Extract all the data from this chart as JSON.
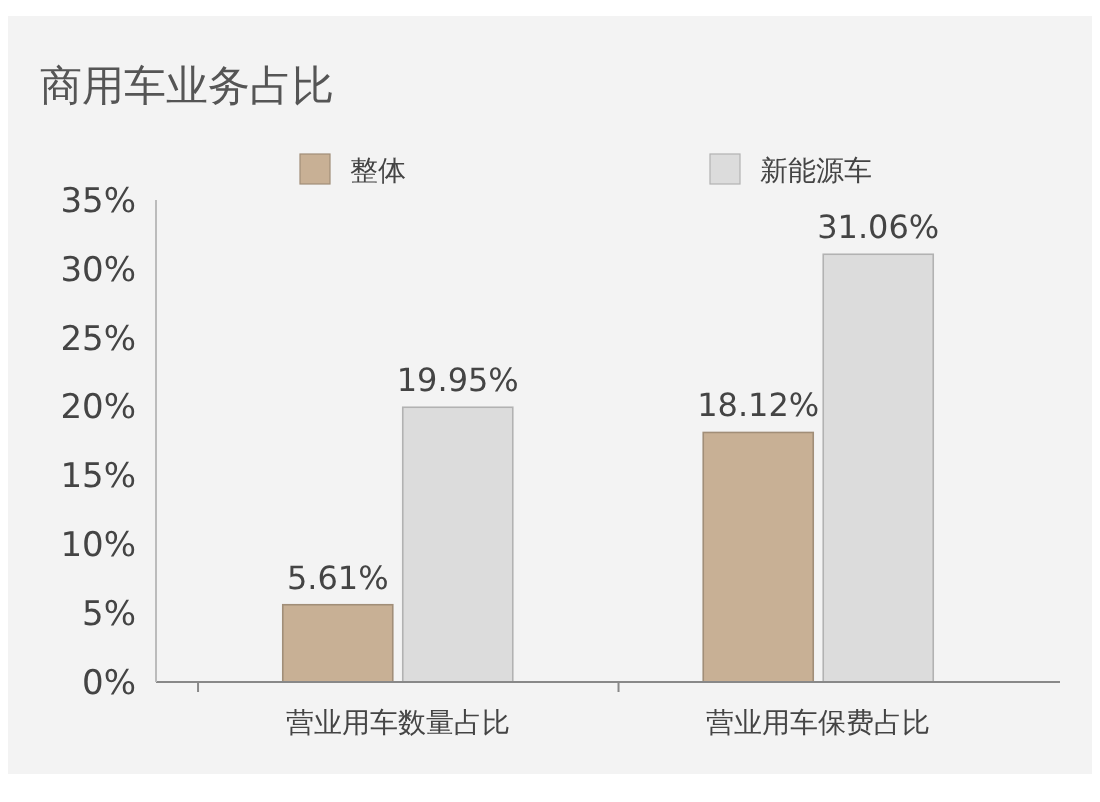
{
  "chart_data": {
    "type": "bar",
    "title": "商用车业务占比",
    "categories": [
      "营业用车数量占比",
      "营业用车保费占比"
    ],
    "series": [
      {
        "name": "整体",
        "color": "#c8b095",
        "values": [
          5.61,
          18.12
        ],
        "value_labels": [
          "5.61%",
          "18.12%"
        ]
      },
      {
        "name": "新能源车",
        "color": "#dcdcdc",
        "values": [
          19.95,
          31.06
        ],
        "value_labels": [
          "19.95%",
          "31.06%"
        ]
      }
    ],
    "ylim": [
      0,
      35
    ],
    "yticks": [
      {
        "value": 0,
        "label": "0%"
      },
      {
        "value": 5,
        "label": "5%"
      },
      {
        "value": 10,
        "label": "10%"
      },
      {
        "value": 15,
        "label": "15%"
      },
      {
        "value": 20,
        "label": "20%"
      },
      {
        "value": 25,
        "label": "25%"
      },
      {
        "value": 30,
        "label": "30%"
      },
      {
        "value": 35,
        "label": "35%"
      }
    ],
    "legend": "top",
    "grid": false
  }
}
